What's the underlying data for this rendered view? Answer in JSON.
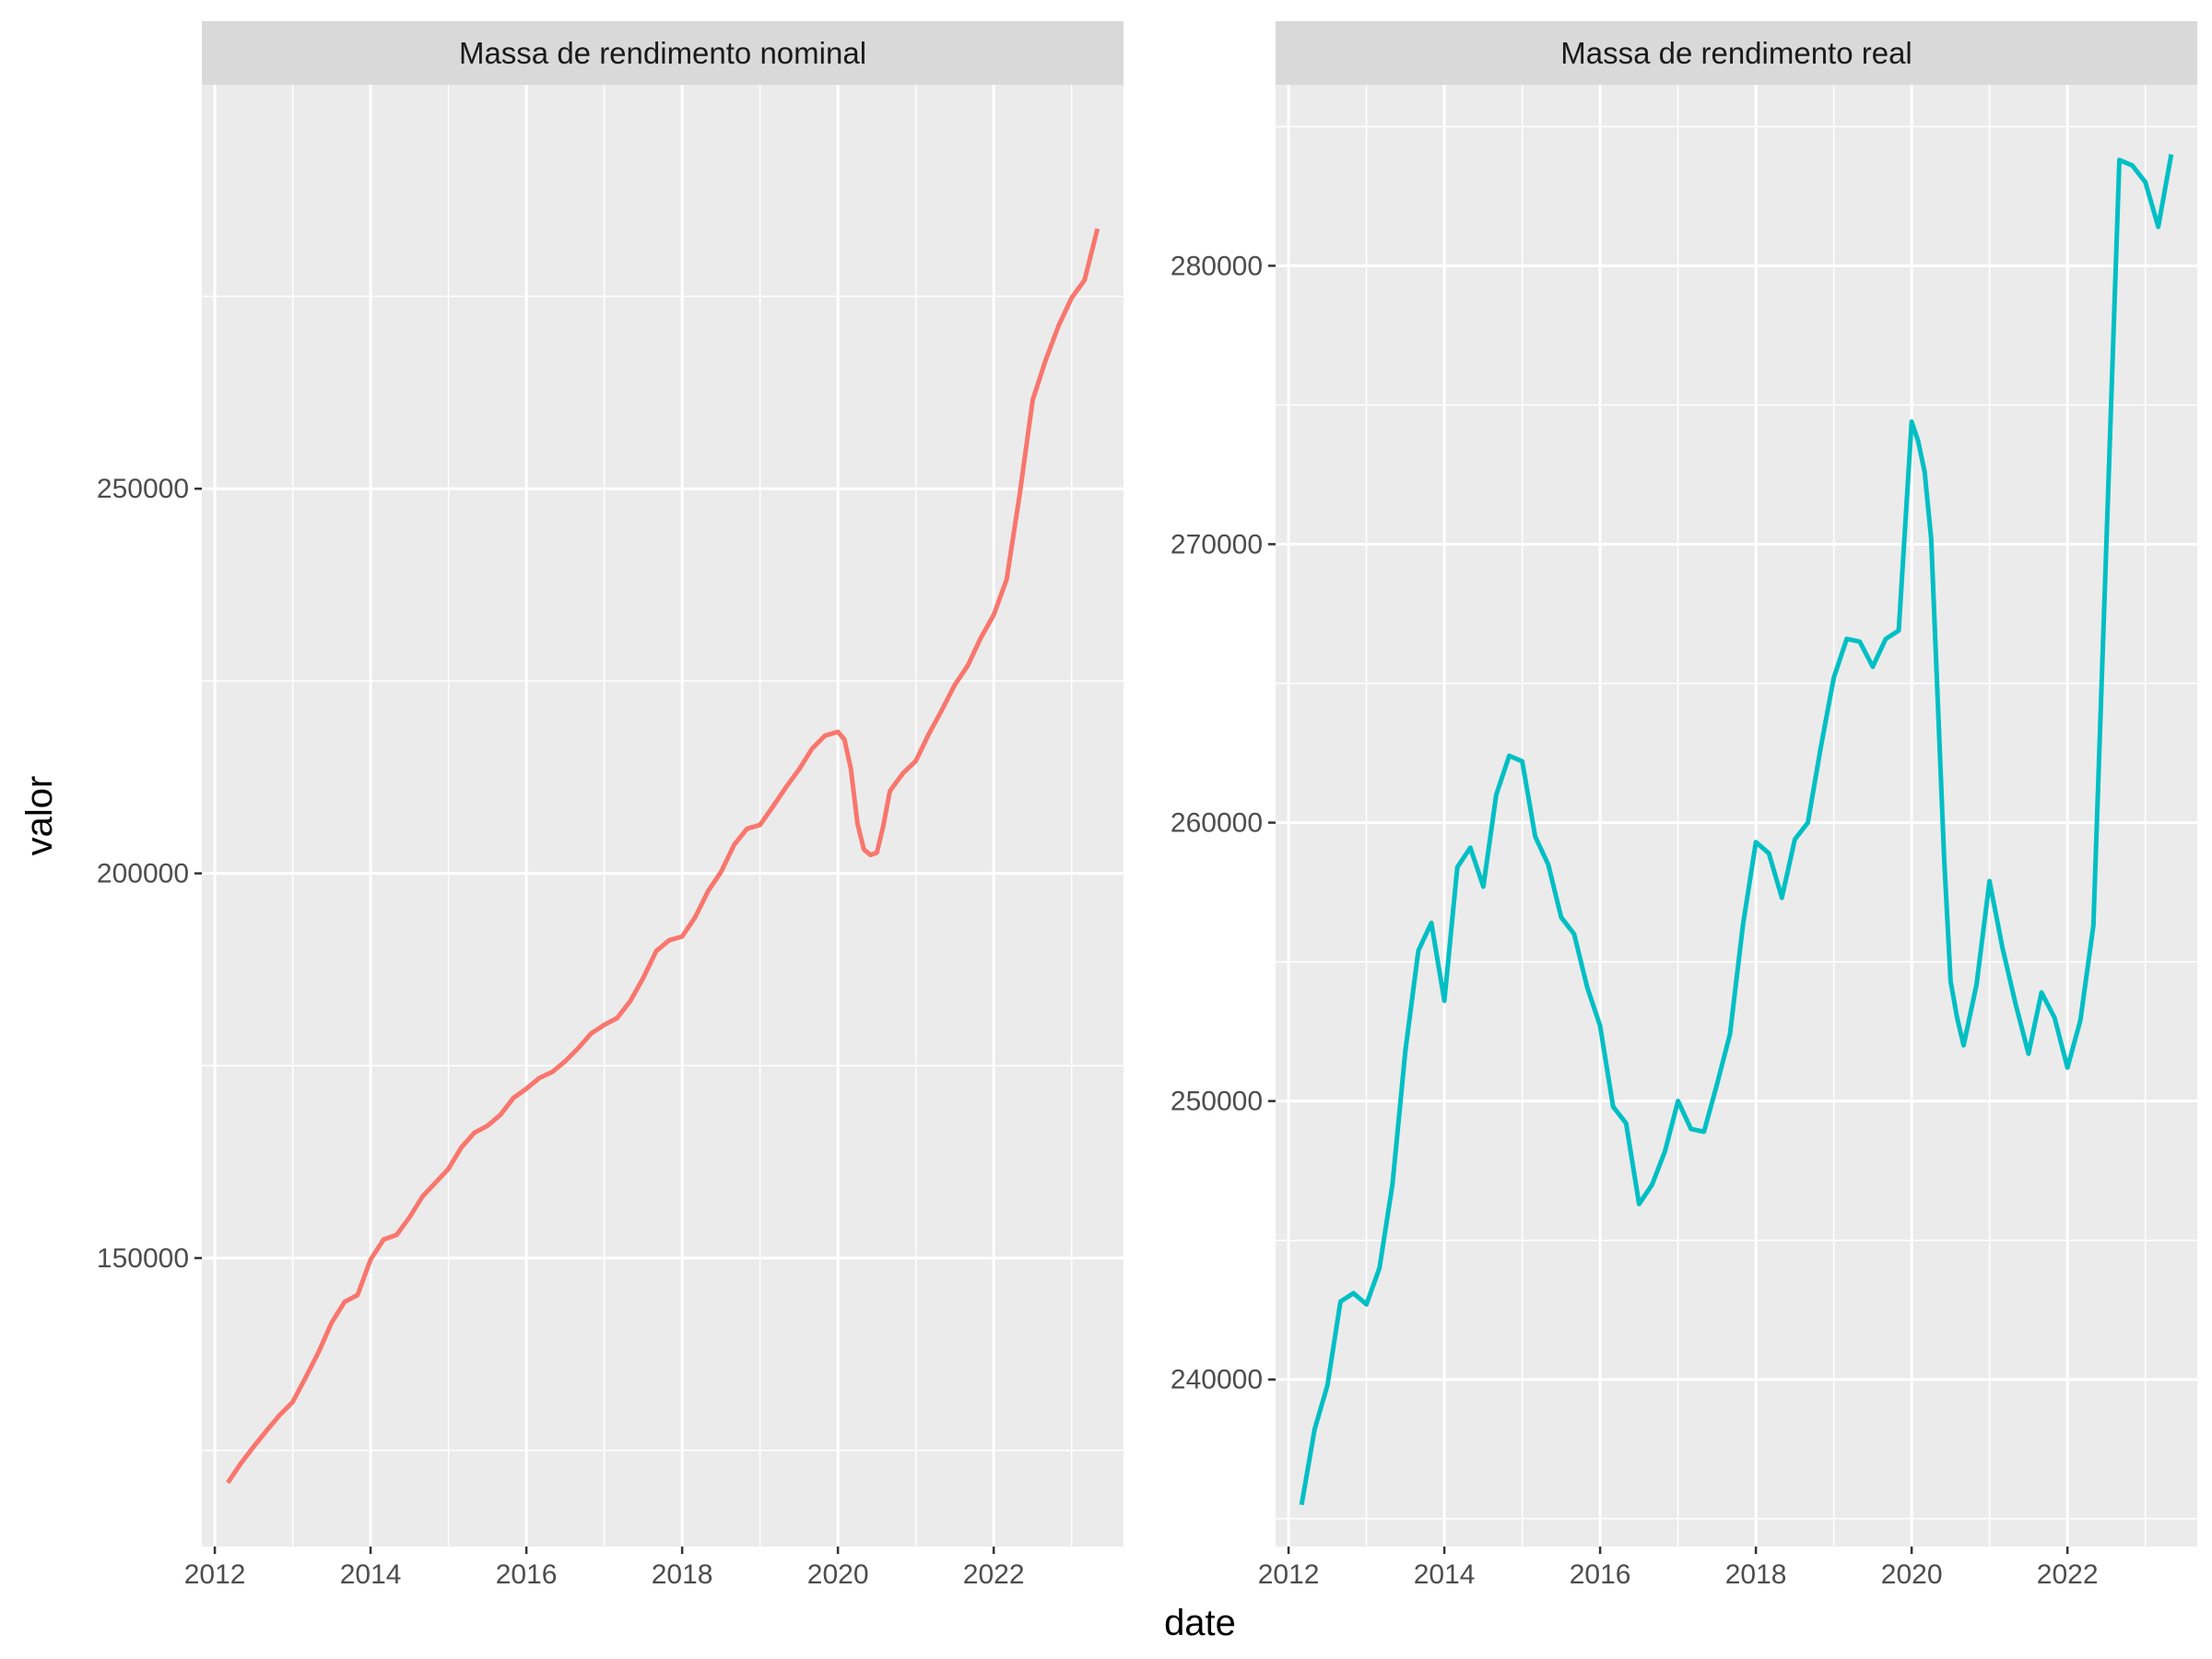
{
  "xlabel": "date",
  "ylabel": "valor",
  "chart_data": [
    {
      "type": "line",
      "title": "Massa de rendimento nominal",
      "color": "#F8766D",
      "xticks": [
        "2012",
        "2014",
        "2016",
        "2018",
        "2020",
        "2022"
      ],
      "yticks": [
        "150000",
        "200000",
        "250000"
      ],
      "xlim": [
        "2011-11",
        "2023-09"
      ],
      "ylim": [
        112500,
        302500
      ],
      "x": [
        "2012-03",
        "2012-05",
        "2012-07",
        "2012-09",
        "2012-11",
        "2013-01",
        "2013-03",
        "2013-05",
        "2013-07",
        "2013-09",
        "2013-11",
        "2014-01",
        "2014-03",
        "2014-05",
        "2014-07",
        "2014-09",
        "2014-11",
        "2015-01",
        "2015-03",
        "2015-05",
        "2015-07",
        "2015-09",
        "2015-11",
        "2016-01",
        "2016-03",
        "2016-05",
        "2016-07",
        "2016-09",
        "2016-11",
        "2017-01",
        "2017-03",
        "2017-05",
        "2017-07",
        "2017-09",
        "2017-11",
        "2018-01",
        "2018-03",
        "2018-05",
        "2018-07",
        "2018-09",
        "2018-11",
        "2019-01",
        "2019-03",
        "2019-05",
        "2019-07",
        "2019-09",
        "2019-11",
        "2020-01",
        "2020-02",
        "2020-03",
        "2020-04",
        "2020-05",
        "2020-06",
        "2020-07",
        "2020-08",
        "2020-09",
        "2020-11",
        "2021-01",
        "2021-03",
        "2021-05",
        "2021-07",
        "2021-09",
        "2021-11",
        "2022-01",
        "2022-03",
        "2022-05",
        "2022-07",
        "2022-09",
        "2022-11",
        "2023-01",
        "2023-03",
        "2023-05"
      ],
      "values": [
        120800,
        123300,
        125500,
        127600,
        129600,
        131300,
        134500,
        137800,
        141600,
        144300,
        145200,
        149800,
        152400,
        153000,
        155300,
        158000,
        159800,
        161600,
        164400,
        166300,
        167200,
        168600,
        170800,
        172000,
        173400,
        174200,
        175600,
        177300,
        179200,
        180300,
        181200,
        183400,
        186400,
        189900,
        191300,
        191800,
        194300,
        197700,
        200200,
        203700,
        205800,
        206300,
        208700,
        211200,
        213500,
        216200,
        217900,
        218400,
        217400,
        213600,
        206500,
        203100,
        202400,
        202700,
        206200,
        210700,
        213000,
        214600,
        218100,
        221200,
        224500,
        227000,
        230600,
        233600,
        238200,
        249200,
        261500,
        266700,
        271200,
        274800,
        277100,
        283800
      ]
    },
    {
      "type": "line",
      "title": "Massa de rendimento real",
      "color": "#00BFC4",
      "xticks": [
        "2012",
        "2014",
        "2016",
        "2018",
        "2020",
        "2022"
      ],
      "yticks": [
        "240000",
        "250000",
        "260000",
        "270000",
        "280000"
      ],
      "xlim": [
        "2011-11",
        "2023-09"
      ],
      "ylim": [
        234000,
        286500
      ],
      "x": [
        "2012-03",
        "2012-05",
        "2012-07",
        "2012-09",
        "2012-11",
        "2013-01",
        "2013-03",
        "2013-05",
        "2013-07",
        "2013-09",
        "2013-11",
        "2014-01",
        "2014-03",
        "2014-05",
        "2014-07",
        "2014-09",
        "2014-11",
        "2015-01",
        "2015-03",
        "2015-05",
        "2015-07",
        "2015-09",
        "2015-11",
        "2016-01",
        "2016-03",
        "2016-05",
        "2016-07",
        "2016-09",
        "2016-11",
        "2017-01",
        "2017-03",
        "2017-05",
        "2017-07",
        "2017-09",
        "2017-11",
        "2018-01",
        "2018-03",
        "2018-05",
        "2018-07",
        "2018-09",
        "2018-11",
        "2019-01",
        "2019-03",
        "2019-05",
        "2019-07",
        "2019-09",
        "2019-11",
        "2020-01",
        "2020-02",
        "2020-03",
        "2020-04",
        "2020-05",
        "2020-06",
        "2020-07",
        "2020-08",
        "2020-09",
        "2020-11",
        "2021-01",
        "2021-03",
        "2021-05",
        "2021-07",
        "2021-09",
        "2021-11",
        "2022-01",
        "2022-03",
        "2022-05",
        "2022-07",
        "2022-09",
        "2022-11",
        "2023-01",
        "2023-03",
        "2023-05"
      ],
      "values": [
        235500,
        238200,
        239800,
        242800,
        243100,
        242700,
        244000,
        247000,
        251800,
        255400,
        256400,
        253600,
        258400,
        259100,
        257700,
        261000,
        262400,
        262200,
        259500,
        258500,
        256600,
        256000,
        254100,
        252700,
        249800,
        249200,
        246300,
        247000,
        248200,
        250000,
        249000,
        248900,
        250600,
        252400,
        256300,
        259300,
        258900,
        257300,
        259400,
        260000,
        262700,
        265200,
        266600,
        266500,
        265600,
        266600,
        266900,
        274400,
        273700,
        272600,
        270200,
        264500,
        258700,
        254300,
        253000,
        252000,
        254200,
        257900,
        255500,
        253500,
        251700,
        253900,
        253000,
        251200,
        252900,
        256300,
        270000,
        283800,
        283600,
        283000,
        281400,
        284000
      ]
    }
  ]
}
